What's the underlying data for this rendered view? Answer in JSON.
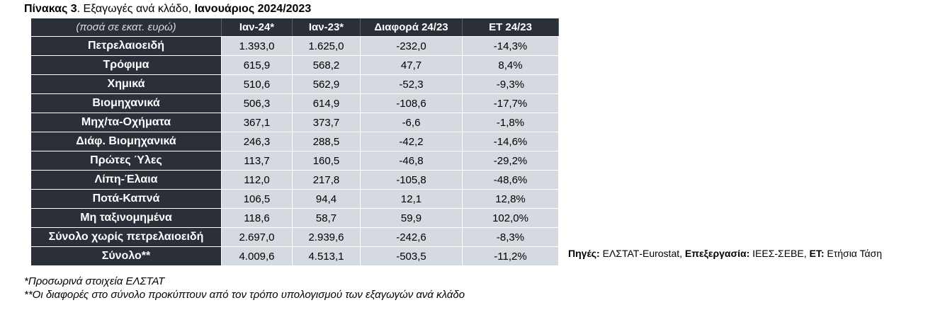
{
  "title": {
    "prefix": "Πίνακας 3",
    "middle": ". Εξαγωγές ανά κλάδο, ",
    "period": "Ιανουάριος 2024/2023"
  },
  "table": {
    "headers": [
      "(ποσά σε εκατ. ευρώ)",
      "Ιαν-24*",
      "Ιαν-23*",
      "Διαφορά 24/23",
      "ΕΤ 24/23"
    ],
    "rows": [
      {
        "label": "Πετρελαιοειδή",
        "jan24": "1.393,0",
        "jan23": "1.625,0",
        "diff": "-232,0",
        "et": "-14,3%"
      },
      {
        "label": "Τρόφιμα",
        "jan24": "615,9",
        "jan23": "568,2",
        "diff": "47,7",
        "et": "8,4%"
      },
      {
        "label": "Χημικά",
        "jan24": "510,6",
        "jan23": "562,9",
        "diff": "-52,3",
        "et": "-9,3%"
      },
      {
        "label": "Βιομηχανικά",
        "jan24": "506,3",
        "jan23": "614,9",
        "diff": "-108,6",
        "et": "-17,7%"
      },
      {
        "label": "Μηχ/τα-Οχήματα",
        "jan24": "367,1",
        "jan23": "373,7",
        "diff": "-6,6",
        "et": "-1,8%"
      },
      {
        "label": "Διάφ. Βιομηχανικά",
        "jan24": "246,3",
        "jan23": "288,5",
        "diff": "-42,2",
        "et": "-14,6%"
      },
      {
        "label": "Πρώτες Ύλες",
        "jan24": "113,7",
        "jan23": "160,5",
        "diff": "-46,8",
        "et": "-29,2%"
      },
      {
        "label": "Λίπη-Έλαια",
        "jan24": "112,0",
        "jan23": "217,8",
        "diff": "-105,8",
        "et": "-48,6%"
      },
      {
        "label": "Ποτά-Καπνά",
        "jan24": "106,5",
        "jan23": "94,4",
        "diff": "12,1",
        "et": "12,8%"
      },
      {
        "label": "Μη ταξινομημένα",
        "jan24": "118,6",
        "jan23": "58,7",
        "diff": "59,9",
        "et": "102,0%"
      },
      {
        "label": "Σύνολο χωρίς πετρελαιοειδή",
        "jan24": "2.697,0",
        "jan23": "2.939,6",
        "diff": "-242,6",
        "et": "-8,3%"
      },
      {
        "label": "Σύνολο**",
        "jan24": "4.009,6",
        "jan23": "4.513,1",
        "diff": "-503,5",
        "et": "-11,2%"
      }
    ]
  },
  "source": {
    "sources_label": "Πηγές:",
    "sources_value": " ΕΛΣΤΑΤ-Eurostat, ",
    "processing_label": "Επεξεργασία:",
    "processing_value": " ΙΕΕΣ-ΣΕΒΕ, ",
    "et_label": "ΕΤ:",
    "et_value": " Ετήσια Τάση"
  },
  "notes": [
    "*Προσωρινά στοιχεία ΕΛΣΤΑΤ",
    "**Οι διαφορές στο σύνολο προκύπτουν από τον τρόπο υπολογισμού των εξαγωγών ανά κλάδο"
  ],
  "colors": {
    "header_bg": "#2b2f38",
    "value_bg": "#d5d9e0"
  }
}
